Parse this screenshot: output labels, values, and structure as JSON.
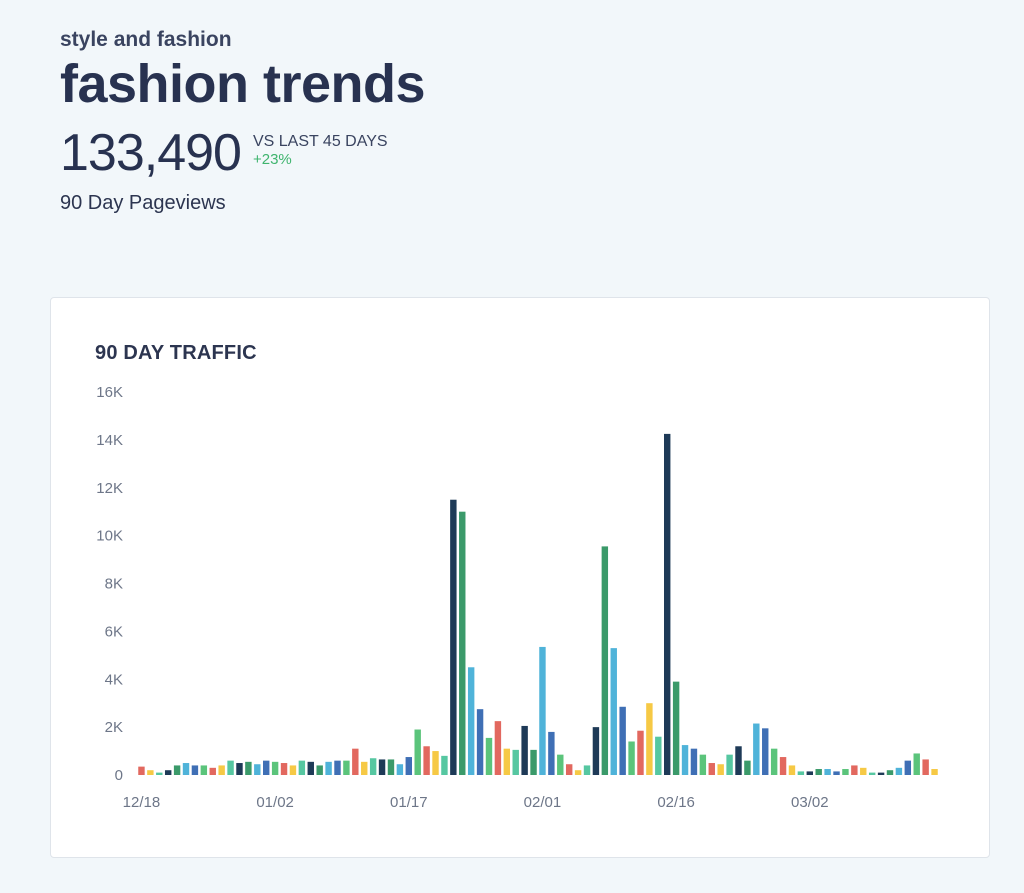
{
  "header": {
    "category": "style and fashion",
    "title": "fashion trends",
    "metric_value": "133,490",
    "compare_label": "VS LAST 45 DAYS",
    "compare_delta": "+23%",
    "metric_caption": "90 Day Pageviews"
  },
  "colors": {
    "positive": "#3fb46e",
    "series_palette": [
      "#e2685f",
      "#f6c945",
      "#56c7a1",
      "#1e3a57",
      "#3b9a6a",
      "#4fb3d9",
      "#3f6fb5",
      "#5bc47b"
    ]
  },
  "chart_data": {
    "type": "bar",
    "title": "90 DAY TRAFFIC",
    "xlabel": "",
    "ylabel": "",
    "ylim": [
      0,
      16000
    ],
    "yticks": [
      0,
      2000,
      4000,
      6000,
      8000,
      10000,
      12000,
      14000,
      16000
    ],
    "ytick_labels": [
      "0",
      "2K",
      "4K",
      "6K",
      "8K",
      "10K",
      "12K",
      "14K",
      "16K"
    ],
    "xtick_labels": [
      {
        "index": 0,
        "label": "12/18"
      },
      {
        "index": 15,
        "label": "01/02"
      },
      {
        "index": 30,
        "label": "01/17"
      },
      {
        "index": 45,
        "label": "02/01"
      },
      {
        "index": 60,
        "label": "02/16"
      },
      {
        "index": 75,
        "label": "03/02"
      }
    ],
    "categories": [
      "12/18",
      "12/19",
      "12/20",
      "12/21",
      "12/22",
      "12/23",
      "12/24",
      "12/25",
      "12/26",
      "12/27",
      "12/28",
      "12/29",
      "12/30",
      "12/31",
      "01/01",
      "01/02",
      "01/03",
      "01/04",
      "01/05",
      "01/06",
      "01/07",
      "01/08",
      "01/09",
      "01/10",
      "01/11",
      "01/12",
      "01/13",
      "01/14",
      "01/15",
      "01/16",
      "01/17",
      "01/18",
      "01/19",
      "01/20",
      "01/21",
      "01/22",
      "01/23",
      "01/24",
      "01/25",
      "01/26",
      "01/27",
      "01/28",
      "01/29",
      "01/30",
      "01/31",
      "02/01",
      "02/02",
      "02/03",
      "02/04",
      "02/05",
      "02/06",
      "02/07",
      "02/08",
      "02/09",
      "02/10",
      "02/11",
      "02/12",
      "02/13",
      "02/14",
      "02/15",
      "02/16",
      "02/17",
      "02/18",
      "02/19",
      "02/20",
      "02/21",
      "02/22",
      "02/23",
      "02/24",
      "02/25",
      "02/26",
      "02/27",
      "02/28",
      "03/01",
      "03/02",
      "03/03",
      "03/04",
      "03/05",
      "03/06",
      "03/07",
      "03/08",
      "03/09",
      "03/10",
      "03/11",
      "03/12",
      "03/13",
      "03/14",
      "03/15",
      "03/16",
      "03/17"
    ],
    "values": [
      350,
      200,
      100,
      200,
      400,
      500,
      400,
      400,
      300,
      400,
      600,
      500,
      550,
      450,
      600,
      550,
      500,
      400,
      600,
      550,
      400,
      550,
      600,
      600,
      1100,
      550,
      700,
      650,
      650,
      450,
      750,
      1900,
      1200,
      1000,
      800,
      11500,
      11000,
      4500,
      2750,
      1550,
      2250,
      1100,
      1050,
      2050,
      1050,
      5350,
      1800,
      850,
      450,
      200,
      400,
      2000,
      9550,
      5300,
      2850,
      1400,
      1850,
      3000,
      1600,
      14250,
      3900,
      1250,
      1100,
      850,
      500,
      450,
      850,
      1200,
      600,
      2150,
      1950,
      1100,
      750,
      400,
      150,
      150,
      250,
      250,
      150,
      250,
      400,
      300,
      100,
      100,
      200,
      300,
      600,
      900,
      650,
      250
    ]
  }
}
